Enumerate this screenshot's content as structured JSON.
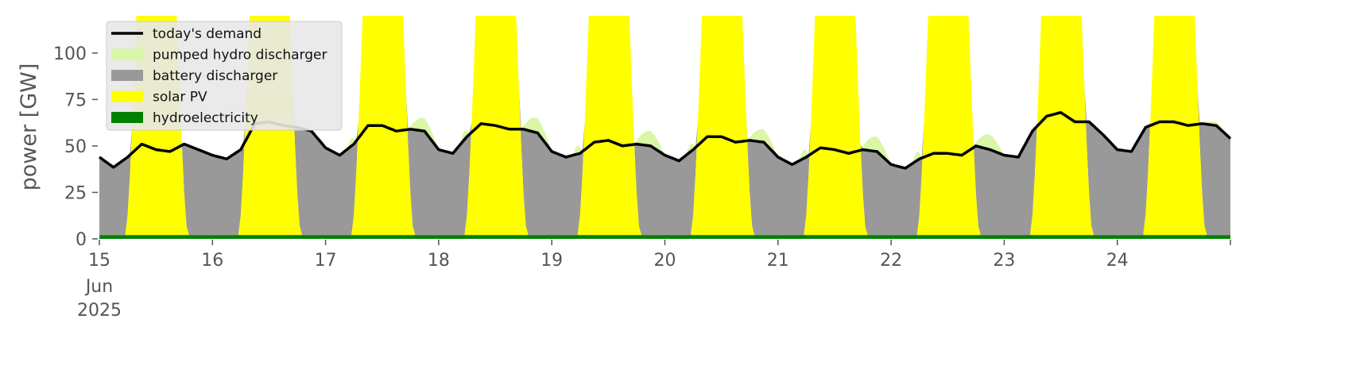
{
  "chart_data": {
    "type": "area",
    "ylabel": "power [GW]",
    "ylim": [
      0,
      120
    ],
    "yticks": [
      0,
      25,
      50,
      75,
      100
    ],
    "xlim": [
      "2025-06-15T00:00",
      "2025-06-25T00:00"
    ],
    "xticks": [
      {
        "date": "2025-06-15",
        "label": "15",
        "sub1": "Jun",
        "sub2": "2025"
      },
      {
        "date": "2025-06-16",
        "label": "16",
        "sub1": "",
        "sub2": ""
      },
      {
        "date": "2025-06-17",
        "label": "17",
        "sub1": "",
        "sub2": ""
      },
      {
        "date": "2025-06-18",
        "label": "18",
        "sub1": "",
        "sub2": ""
      },
      {
        "date": "2025-06-19",
        "label": "19",
        "sub1": "",
        "sub2": ""
      },
      {
        "date": "2025-06-20",
        "label": "20",
        "sub1": "",
        "sub2": ""
      },
      {
        "date": "2025-06-21",
        "label": "21",
        "sub1": "",
        "sub2": ""
      },
      {
        "date": "2025-06-22",
        "label": "22",
        "sub1": "",
        "sub2": ""
      },
      {
        "date": "2025-06-23",
        "label": "23",
        "sub1": "",
        "sub2": ""
      },
      {
        "date": "2025-06-24",
        "label": "24",
        "sub1": "",
        "sub2": ""
      },
      {
        "date": "2025-06-25",
        "label": "",
        "sub1": "",
        "sub2": ""
      }
    ],
    "legend_position": "top-left",
    "legend": [
      {
        "name": "today's demand",
        "kind": "line",
        "color": "#000000"
      },
      {
        "name": "pumped hydro discharger",
        "kind": "patch",
        "color": "#d9f7a6"
      },
      {
        "name": "battery discharger",
        "kind": "patch",
        "color": "#999999"
      },
      {
        "name": "solar PV",
        "kind": "patch",
        "color": "#ffff00"
      },
      {
        "name": "hydroelectricity",
        "kind": "patch",
        "color": "#008000"
      }
    ],
    "demand_series": {
      "name": "today's demand",
      "color": "#000000",
      "points": [
        [
          "2025-06-15T00:00",
          44
        ],
        [
          "2025-06-15T03:00",
          38.5
        ],
        [
          "2025-06-15T06:00",
          44
        ],
        [
          "2025-06-15T09:00",
          51
        ],
        [
          "2025-06-15T12:00",
          48
        ],
        [
          "2025-06-15T15:00",
          47
        ],
        [
          "2025-06-15T18:00",
          51
        ],
        [
          "2025-06-15T21:00",
          48
        ],
        [
          "2025-06-16T00:00",
          45
        ],
        [
          "2025-06-16T03:00",
          43
        ],
        [
          "2025-06-16T06:00",
          48
        ],
        [
          "2025-06-16T09:00",
          62
        ],
        [
          "2025-06-16T12:00",
          63
        ],
        [
          "2025-06-16T15:00",
          61
        ],
        [
          "2025-06-16T18:00",
          60
        ],
        [
          "2025-06-16T21:00",
          58
        ],
        [
          "2025-06-17T00:00",
          49
        ],
        [
          "2025-06-17T03:00",
          45
        ],
        [
          "2025-06-17T06:00",
          51
        ],
        [
          "2025-06-17T09:00",
          61
        ],
        [
          "2025-06-17T12:00",
          61
        ],
        [
          "2025-06-17T15:00",
          58
        ],
        [
          "2025-06-17T18:00",
          59
        ],
        [
          "2025-06-17T21:00",
          58
        ],
        [
          "2025-06-18T00:00",
          48
        ],
        [
          "2025-06-18T03:00",
          46
        ],
        [
          "2025-06-18T06:00",
          55
        ],
        [
          "2025-06-18T09:00",
          62
        ],
        [
          "2025-06-18T12:00",
          61
        ],
        [
          "2025-06-18T15:00",
          59
        ],
        [
          "2025-06-18T18:00",
          59
        ],
        [
          "2025-06-18T21:00",
          57
        ],
        [
          "2025-06-19T00:00",
          47
        ],
        [
          "2025-06-19T03:00",
          44
        ],
        [
          "2025-06-19T06:00",
          46
        ],
        [
          "2025-06-19T09:00",
          52
        ],
        [
          "2025-06-19T12:00",
          53
        ],
        [
          "2025-06-19T15:00",
          50
        ],
        [
          "2025-06-19T18:00",
          51
        ],
        [
          "2025-06-19T21:00",
          50
        ],
        [
          "2025-06-20T00:00",
          45
        ],
        [
          "2025-06-20T03:00",
          42
        ],
        [
          "2025-06-20T06:00",
          48
        ],
        [
          "2025-06-20T09:00",
          55
        ],
        [
          "2025-06-20T12:00",
          55
        ],
        [
          "2025-06-20T15:00",
          52
        ],
        [
          "2025-06-20T18:00",
          53
        ],
        [
          "2025-06-20T21:00",
          52
        ],
        [
          "2025-06-21T00:00",
          44
        ],
        [
          "2025-06-21T03:00",
          40
        ],
        [
          "2025-06-21T06:00",
          44
        ],
        [
          "2025-06-21T09:00",
          49
        ],
        [
          "2025-06-21T12:00",
          48
        ],
        [
          "2025-06-21T15:00",
          46
        ],
        [
          "2025-06-21T18:00",
          48
        ],
        [
          "2025-06-21T21:00",
          47
        ],
        [
          "2025-06-22T00:00",
          40
        ],
        [
          "2025-06-22T03:00",
          38
        ],
        [
          "2025-06-22T06:00",
          43
        ],
        [
          "2025-06-22T09:00",
          46
        ],
        [
          "2025-06-22T12:00",
          46
        ],
        [
          "2025-06-22T15:00",
          45
        ],
        [
          "2025-06-22T18:00",
          50
        ],
        [
          "2025-06-22T21:00",
          48
        ],
        [
          "2025-06-23T00:00",
          45
        ],
        [
          "2025-06-23T03:00",
          44
        ],
        [
          "2025-06-23T06:00",
          58
        ],
        [
          "2025-06-23T09:00",
          66
        ],
        [
          "2025-06-23T12:00",
          68
        ],
        [
          "2025-06-23T15:00",
          63
        ],
        [
          "2025-06-23T18:00",
          63
        ],
        [
          "2025-06-23T21:00",
          56
        ],
        [
          "2025-06-24T00:00",
          48
        ],
        [
          "2025-06-24T03:00",
          47
        ],
        [
          "2025-06-24T06:00",
          60
        ],
        [
          "2025-06-24T09:00",
          63
        ],
        [
          "2025-06-24T12:00",
          63
        ],
        [
          "2025-06-24T15:00",
          61
        ],
        [
          "2025-06-24T18:00",
          62
        ],
        [
          "2025-06-24T21:00",
          61
        ],
        [
          "2025-06-25T00:00",
          54
        ]
      ]
    },
    "stack_series": [
      {
        "name": "hydroelectricity",
        "color": "#008000",
        "typical_value": 2
      },
      {
        "name": "solar PV",
        "color": "#ffff00",
        "typical_value": "daytime, exceeds 120 at midday"
      },
      {
        "name": "battery discharger",
        "color": "#999999",
        "typical_value": "fills night demand"
      },
      {
        "name": "pumped hydro discharger",
        "color": "#d9f7a6",
        "typical_value": "evening, up to about 8 above battery"
      }
    ]
  }
}
